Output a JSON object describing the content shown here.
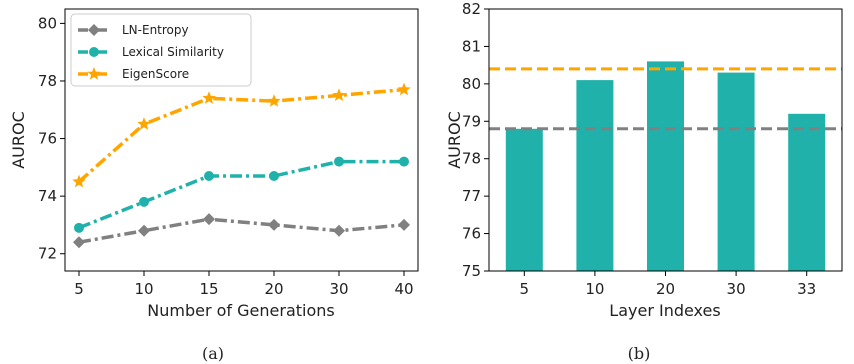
{
  "chart_data": [
    {
      "type": "line",
      "caption": "(a)",
      "xlabel": "Number of Generations",
      "ylabel": "AUROC",
      "categories": [
        "5",
        "10",
        "15",
        "20",
        "30",
        "40"
      ],
      "ylim": [
        71.4,
        80.5
      ],
      "yticks": [
        72,
        74,
        76,
        78,
        80
      ],
      "grid": false,
      "legend_position": "top-left",
      "series": [
        {
          "name": "LN-Entropy",
          "color": "#808080",
          "marker": "diamond",
          "values": [
            72.4,
            72.8,
            73.2,
            73.0,
            72.8,
            73.0
          ]
        },
        {
          "name": "Lexical Similarity",
          "color": "#20b2aa",
          "marker": "circle",
          "values": [
            72.9,
            73.8,
            74.7,
            74.7,
            75.2,
            75.2
          ]
        },
        {
          "name": "EigenScore",
          "color": "#ffa500",
          "marker": "star",
          "values": [
            74.5,
            76.5,
            77.4,
            77.3,
            77.5,
            77.7
          ]
        }
      ]
    },
    {
      "type": "bar",
      "caption": "(b)",
      "xlabel": "Layer Indexes",
      "ylabel": "AUROC",
      "categories": [
        "5",
        "10",
        "20",
        "30",
        "33"
      ],
      "values": [
        78.8,
        80.1,
        80.6,
        80.3,
        79.2
      ],
      "bar_color": "#20b2aa",
      "ylim": [
        75,
        82
      ],
      "yticks": [
        75,
        76,
        77,
        78,
        79,
        80,
        81,
        82
      ],
      "reference_lines": [
        {
          "value": 80.4,
          "color": "#ffa500",
          "style": "dashed"
        },
        {
          "value": 78.8,
          "color": "#808080",
          "style": "dashed"
        }
      ],
      "grid": false
    }
  ]
}
